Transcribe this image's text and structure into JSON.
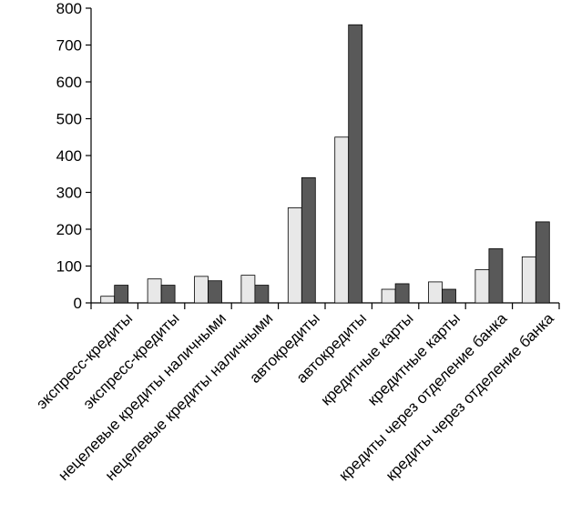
{
  "chart_data": {
    "type": "bar",
    "categories": [
      "экспресс-кредиты",
      "экспресс-кредиты",
      "нецелевые кредиты наличными",
      "нецелевые кредиты наличными",
      "автокредиты",
      "автокредиты",
      "кредитные карты",
      "кредитные карты",
      "кредиты через отделение банка",
      "кредиты через отделение банка"
    ],
    "series": [
      {
        "values": [
          18,
          65,
          72,
          75,
          258,
          450,
          37,
          57,
          90,
          125
        ],
        "color": "#e8e8e8"
      },
      {
        "values": [
          48,
          48,
          60,
          48,
          340,
          755,
          52,
          37,
          147,
          220
        ],
        "color": "#595959"
      }
    ],
    "ylim": [
      0,
      800
    ],
    "yticks": [
      "0",
      "100",
      "200",
      "300",
      "400",
      "500",
      "600",
      "700",
      "800"
    ],
    "grid": false,
    "legend": "none"
  }
}
